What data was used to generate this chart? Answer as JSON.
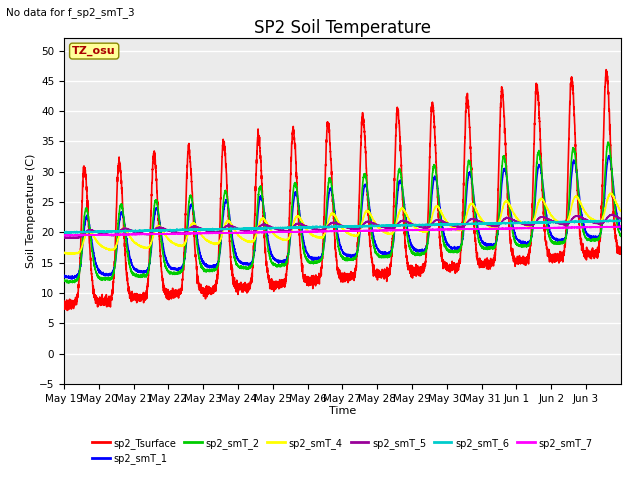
{
  "title": "SP2 Soil Temperature",
  "subtitle": "No data for f_sp2_smT_3",
  "xlabel": "Time",
  "ylabel": "Soil Temperature (C)",
  "tz_label": "TZ_osu",
  "ylim": [
    -5,
    52
  ],
  "yticks": [
    -5,
    0,
    5,
    10,
    15,
    20,
    25,
    30,
    35,
    40,
    45,
    50
  ],
  "legend_entries": [
    {
      "label": "sp2_Tsurface",
      "color": "#FF0000",
      "lw": 1.2
    },
    {
      "label": "sp2_smT_1",
      "color": "#0000FF",
      "lw": 1.2
    },
    {
      "label": "sp2_smT_2",
      "color": "#00CC00",
      "lw": 1.2
    },
    {
      "label": "sp2_smT_4",
      "color": "#FFFF00",
      "lw": 1.2
    },
    {
      "label": "sp2_smT_5",
      "color": "#990099",
      "lw": 1.2
    },
    {
      "label": "sp2_smT_6",
      "color": "#00CCCC",
      "lw": 1.2
    },
    {
      "label": "sp2_smT_7",
      "color": "#FF00FF",
      "lw": 1.2
    }
  ],
  "background_color": "#ffffff",
  "plot_bg_color": "#ebebeb",
  "grid_color": "#ffffff",
  "title_fontsize": 12,
  "label_fontsize": 8,
  "tick_fontsize": 7.5
}
